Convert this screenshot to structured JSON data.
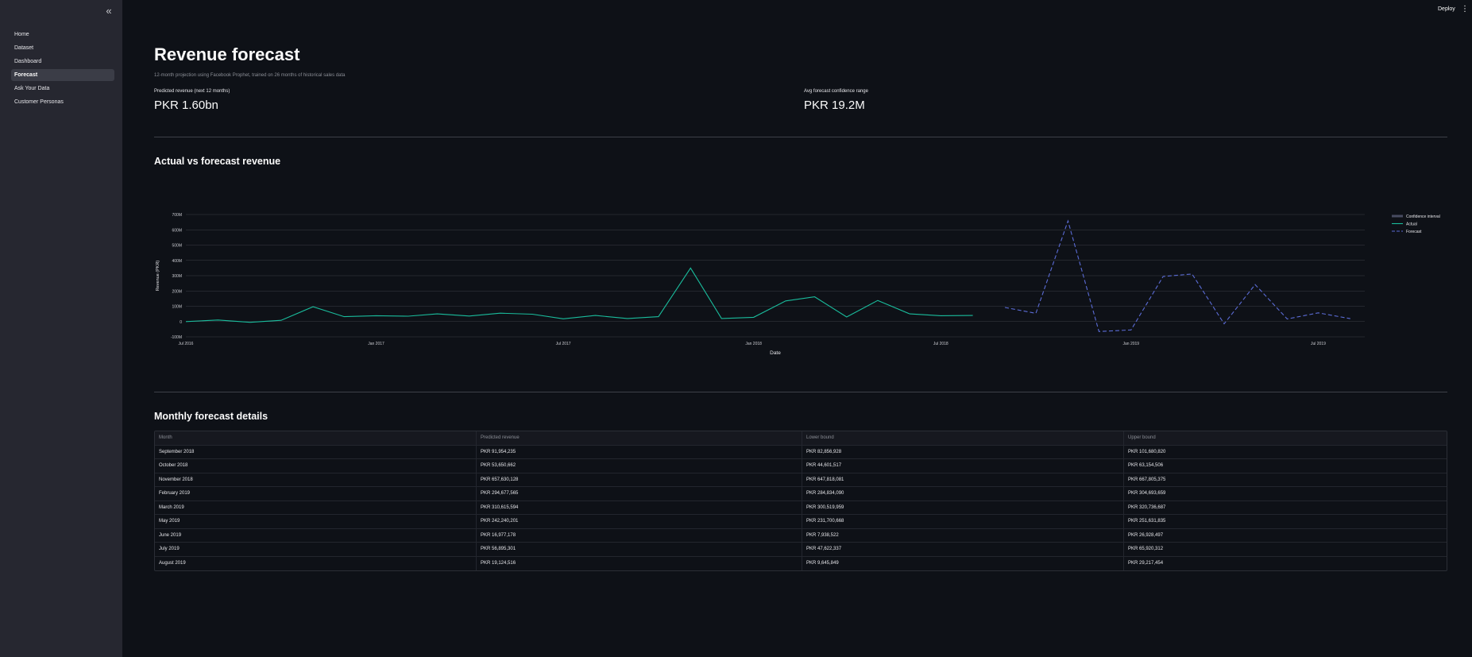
{
  "sidebar": {
    "collapse_icon": "«",
    "items": [
      {
        "label": "Home"
      },
      {
        "label": "Dataset"
      },
      {
        "label": "Dashboard"
      },
      {
        "label": "Forecast"
      },
      {
        "label": "Ask Your Data"
      },
      {
        "label": "Customer Personas"
      }
    ],
    "active_index": 3
  },
  "topbar": {
    "deploy_label": "Deploy",
    "menu_icon": "⋮"
  },
  "page": {
    "title": "Revenue forecast",
    "subtitle": "12-month projection using Facebook Prophet, trained on 26 months of historical sales data"
  },
  "metrics": [
    {
      "label": "Predicted revenue (next 12 months)",
      "value": "PKR 1.60bn"
    },
    {
      "label": "Avg forecast confidence range",
      "value": "PKR 19.2M"
    }
  ],
  "sections": {
    "chart_title": "Actual vs forecast revenue",
    "table_title": "Monthly forecast details"
  },
  "colors": {
    "actual": "#1abc9c",
    "forecast": "#5b6cd6",
    "confidence": "#6e7391",
    "grid": "#3a3d46"
  },
  "chart_data": {
    "type": "line",
    "xlabel": "Date",
    "ylabel": "Revenue (PKR)",
    "ylim": [
      -100,
      700
    ],
    "yticks": [
      -100,
      0,
      100,
      200,
      300,
      400,
      500,
      600,
      700
    ],
    "ytick_labels": [
      "-100M",
      "0",
      "100M",
      "200M",
      "300M",
      "400M",
      "500M",
      "600M",
      "700M"
    ],
    "xlim": [
      "2016-07-01",
      "2019-08-15"
    ],
    "xticks": [
      "2016-07-01",
      "2017-01-01",
      "2017-07-01",
      "2018-01-01",
      "2018-07-01",
      "2019-01-01",
      "2019-07-01"
    ],
    "xtick_labels": [
      "Jul 2016",
      "Jan 2017",
      "Jul 2017",
      "Jan 2018",
      "Jul 2018",
      "Jan 2019",
      "Jul 2019"
    ],
    "legend": {
      "position": "top-right",
      "entries": [
        "Confidence interval",
        "Actual",
        "Forecast"
      ]
    },
    "series": [
      {
        "name": "Actual",
        "style": "solid",
        "x": [
          "2016-07-01",
          "2016-08-01",
          "2016-09-01",
          "2016-10-01",
          "2016-11-01",
          "2016-12-01",
          "2017-01-01",
          "2017-02-01",
          "2017-03-01",
          "2017-04-01",
          "2017-05-01",
          "2017-06-01",
          "2017-07-01",
          "2017-08-01",
          "2017-09-01",
          "2017-10-01",
          "2017-11-01",
          "2017-12-01",
          "2018-01-01",
          "2018-02-01",
          "2018-03-01",
          "2018-04-01",
          "2018-05-01",
          "2018-06-01",
          "2018-07-01",
          "2018-08-01"
        ],
        "values": [
          0,
          10,
          -5,
          8,
          97,
          32,
          38,
          35,
          50,
          36,
          55,
          48,
          18,
          40,
          20,
          32,
          350,
          20,
          28,
          135,
          162,
          30,
          138,
          50,
          38,
          40
        ]
      },
      {
        "name": "Forecast",
        "style": "dashed",
        "x": [
          "2018-09-01",
          "2018-10-01",
          "2018-11-01",
          "2018-12-01",
          "2019-01-01",
          "2019-02-01",
          "2019-03-01",
          "2019-04-01",
          "2019-05-01",
          "2019-06-01",
          "2019-07-01",
          "2019-08-01"
        ],
        "values": [
          92,
          54,
          658,
          -65,
          -55,
          295,
          311,
          -15,
          242,
          17,
          57,
          19
        ]
      }
    ]
  },
  "table": {
    "headers": [
      "Month",
      "Predicted revenue",
      "Lower bound",
      "Upper bound"
    ],
    "rows": [
      [
        "September 2018",
        "PKR 91,954,235",
        "PKR 82,856,928",
        "PKR 101,680,820"
      ],
      [
        "October 2018",
        "PKR 53,650,662",
        "PKR 44,601,517",
        "PKR 63,154,506"
      ],
      [
        "November 2018",
        "PKR 657,630,128",
        "PKR 647,818,081",
        "PKR 667,805,375"
      ],
      [
        "February 2019",
        "PKR 294,677,565",
        "PKR 284,834,090",
        "PKR 304,693,659"
      ],
      [
        "March 2019",
        "PKR 310,615,594",
        "PKR 300,519,959",
        "PKR 320,736,687"
      ],
      [
        "May 2019",
        "PKR 242,240,201",
        "PKR 231,700,668",
        "PKR 251,631,835"
      ],
      [
        "June 2019",
        "PKR 16,977,178",
        "PKR 7,938,522",
        "PKR 26,928,497"
      ],
      [
        "July 2019",
        "PKR 56,895,301",
        "PKR 47,622,337",
        "PKR 65,920,312"
      ],
      [
        "August 2019",
        "PKR 19,124,516",
        "PKR 9,645,849",
        "PKR 29,217,454"
      ]
    ]
  }
}
